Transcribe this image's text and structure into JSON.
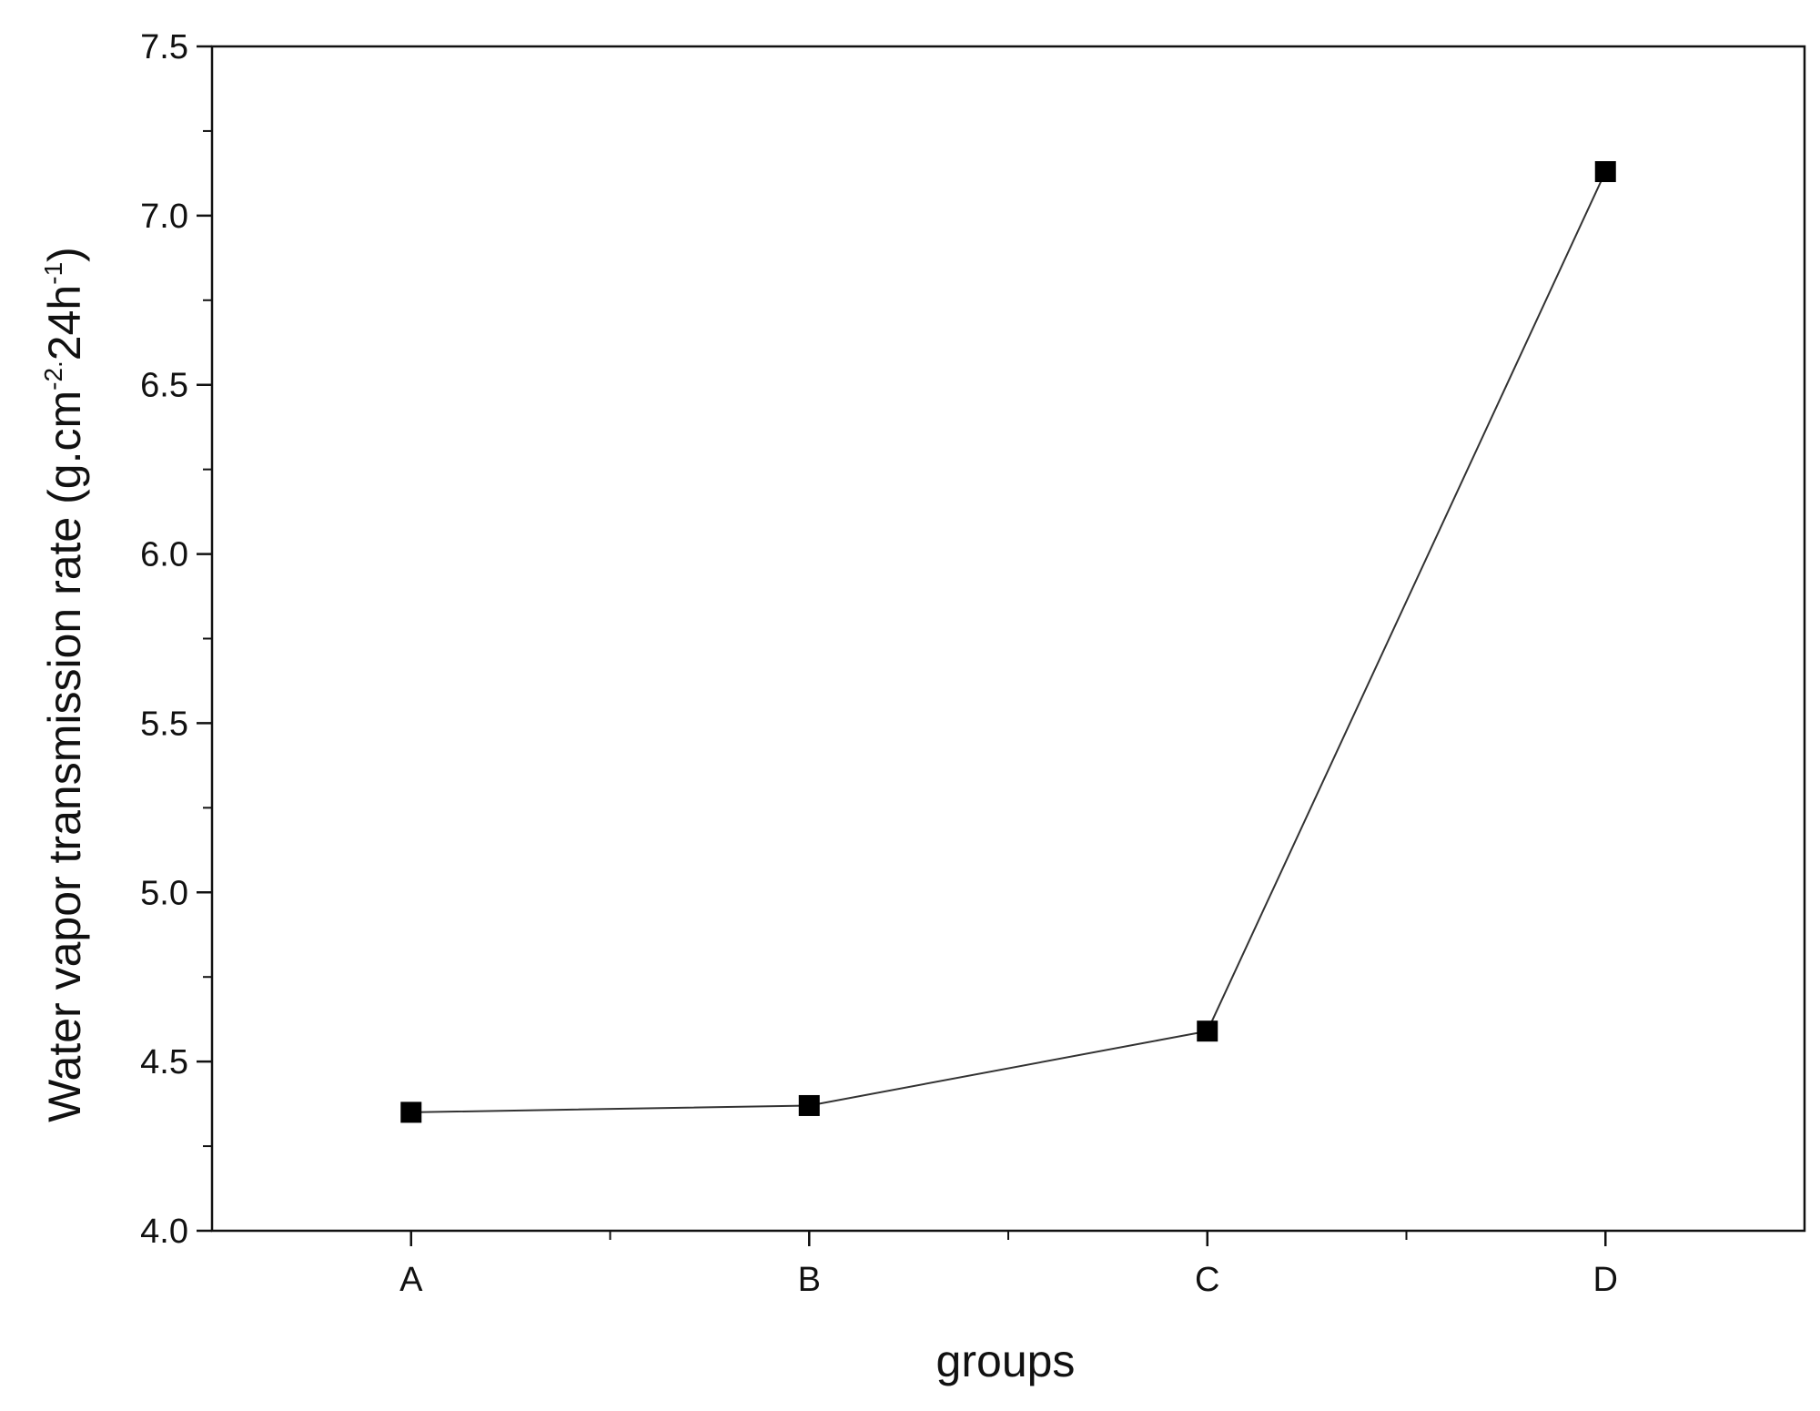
{
  "chart_data": {
    "type": "line",
    "categories": [
      "A",
      "B",
      "C",
      "D"
    ],
    "series": [
      {
        "color": "#000000",
        "values": [
          4.35,
          4.37,
          4.59,
          7.13
        ]
      }
    ],
    "xlabel": "groups",
    "ylabel": [
      "Water vapor transmission rate (g.cm",
      "-2.",
      "24h",
      "-1",
      ")"
    ],
    "ylim": [
      4.0,
      7.5
    ],
    "yticks": [
      {
        "value": 4.0,
        "label": "4.0"
      },
      4.5,
      {
        "value": 5.0,
        "label": "5.0"
      },
      5.5,
      {
        "value": 6.0,
        "label": "6.0"
      },
      6.5,
      {
        "value": 7.0,
        "label": "7.0"
      },
      7.5
    ],
    "yminorticks": [
      4.25,
      4.75,
      5.25,
      5.75,
      6.25,
      6.75,
      7.25
    ],
    "grid": false
  }
}
